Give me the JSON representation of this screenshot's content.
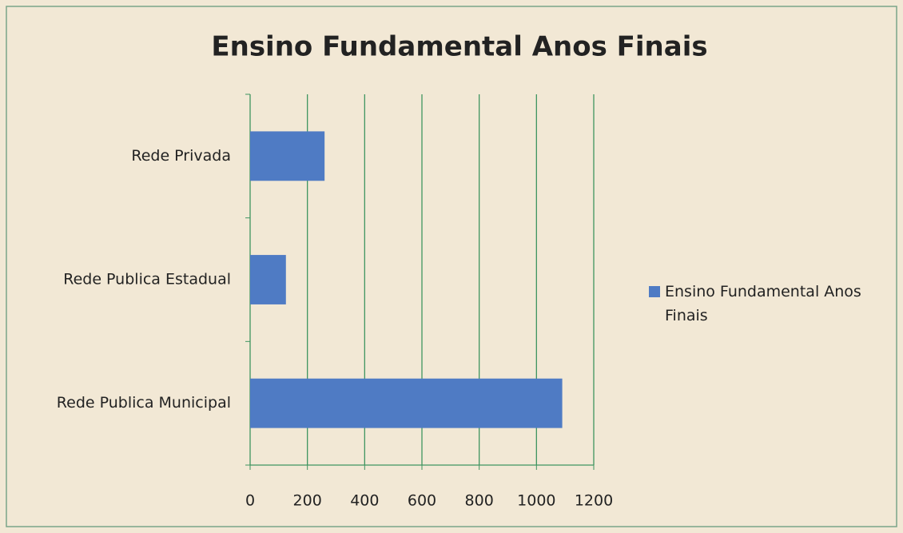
{
  "chart_data": {
    "type": "bar",
    "orientation": "horizontal",
    "title": "Ensino Fundamental Anos Finais",
    "categories": [
      "Rede Privada",
      "Rede Publica Estadual",
      "Rede Publica Municipal"
    ],
    "series": [
      {
        "name": "Ensino Fundamental Anos Finais",
        "color": "#4f7bc4",
        "values": [
          260,
          125,
          1090
        ]
      }
    ],
    "xlim": [
      0,
      1200
    ],
    "xticks": [
      0,
      200,
      400,
      600,
      800,
      1000,
      1200
    ],
    "grid": true,
    "legend": "right"
  }
}
